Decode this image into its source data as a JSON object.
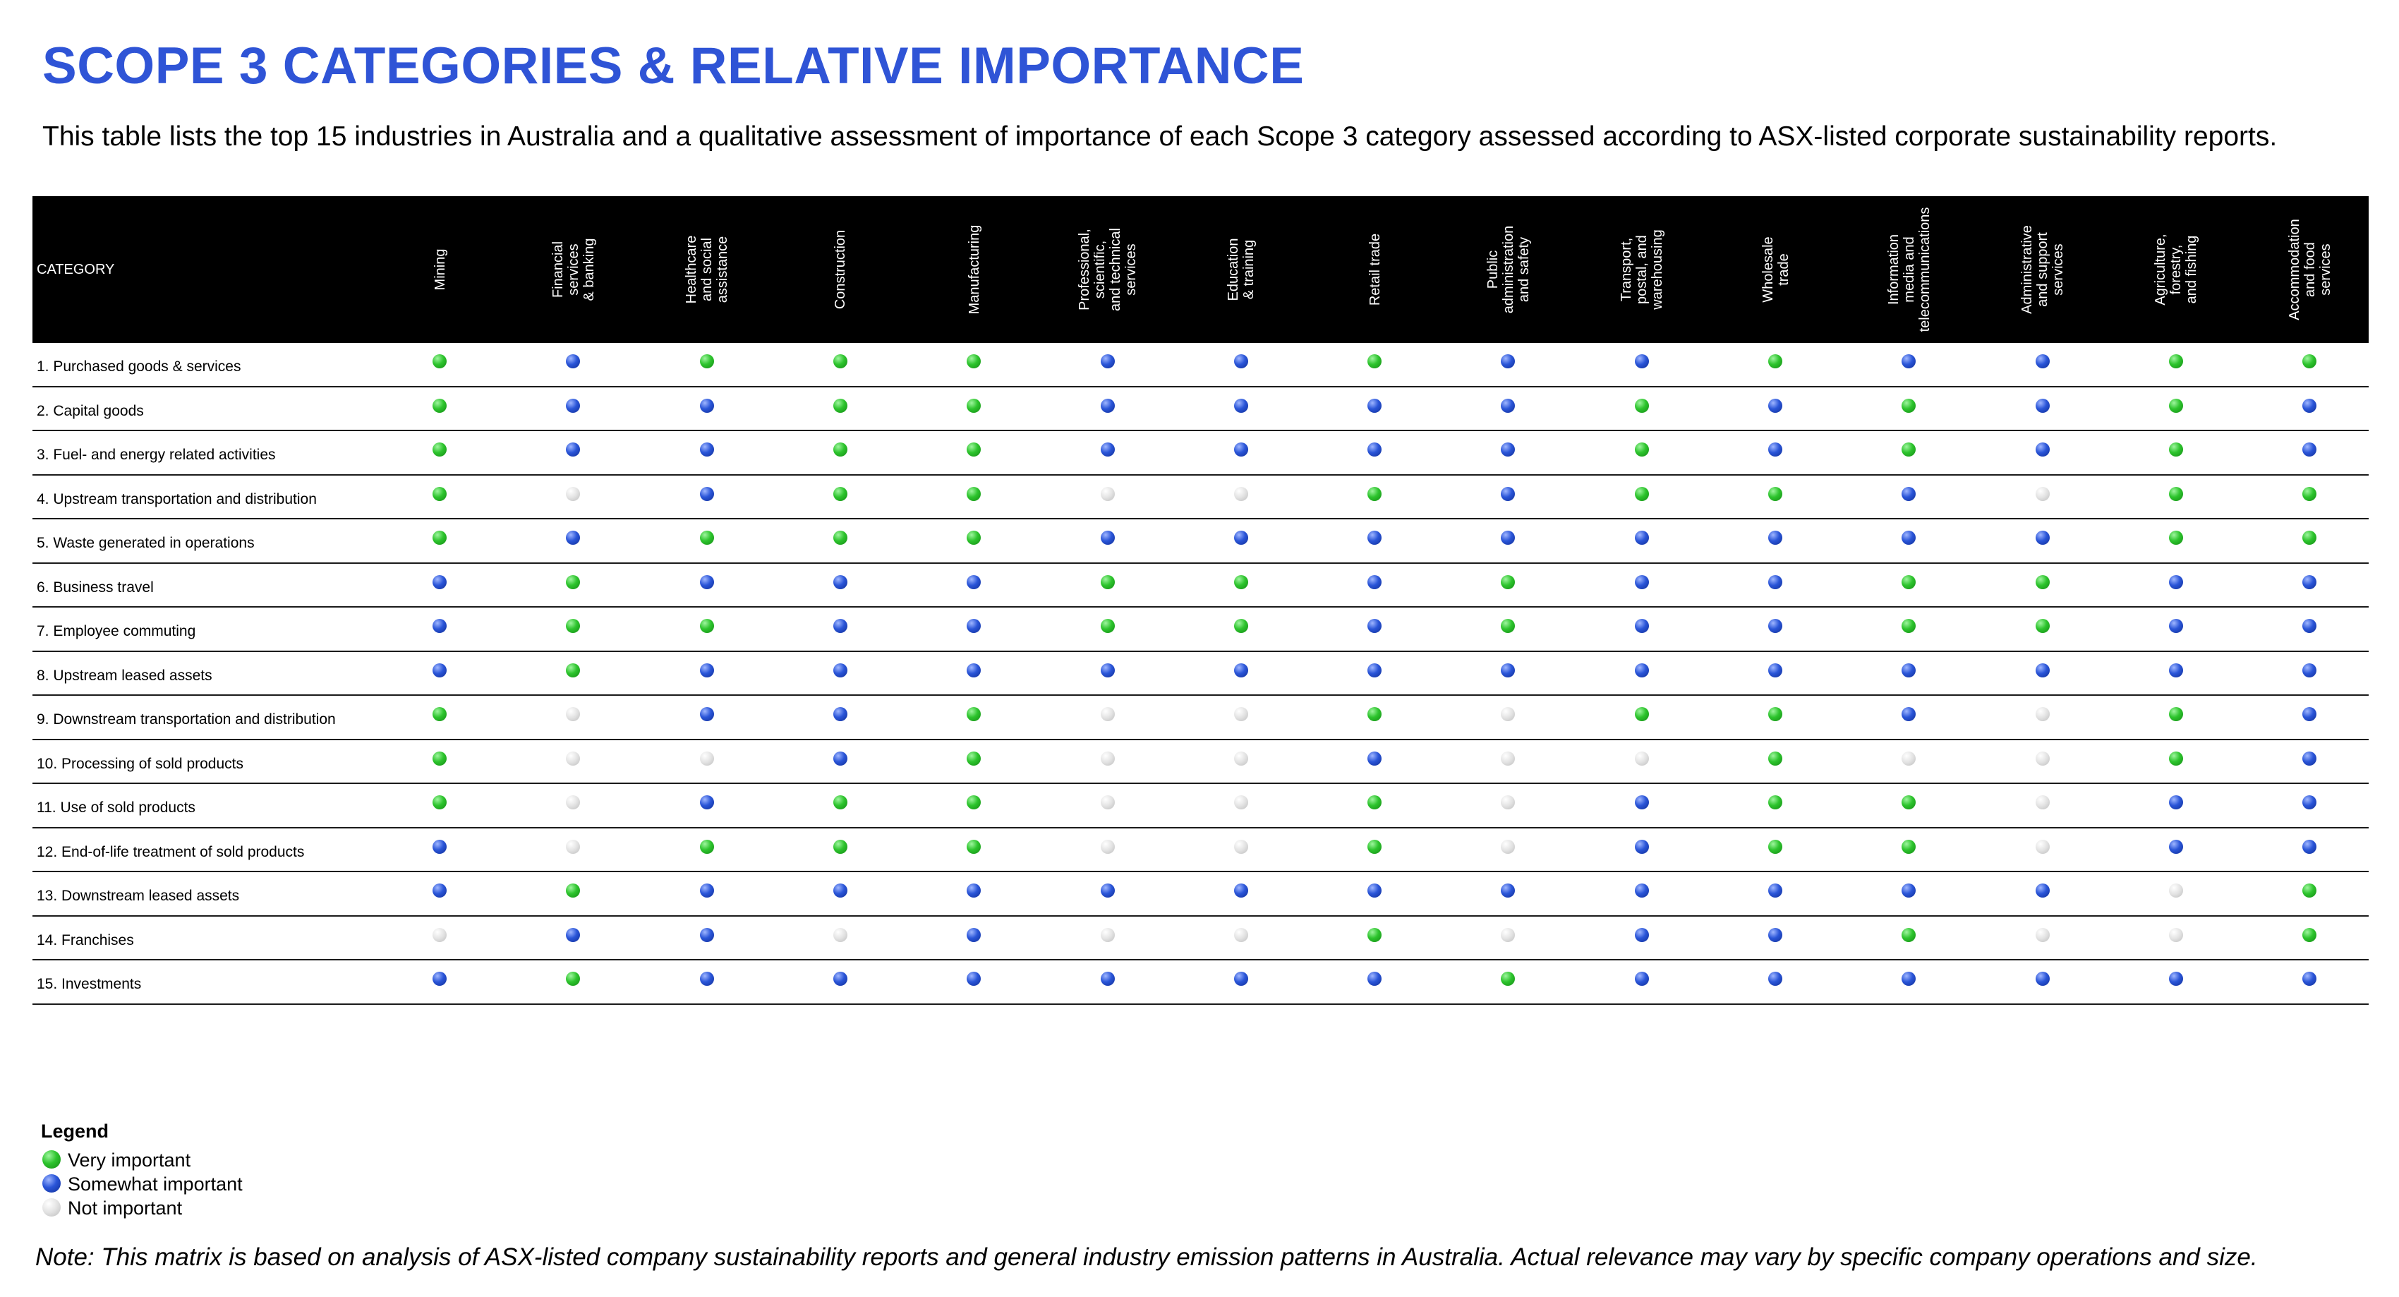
{
  "title": "SCOPE 3 CATEGORIES & RELATIVE IMPORTANCE",
  "subtitle": "This table lists the top 15 industries in Australia and a qualitative assessment of importance of each Scope 3 category assessed according to ASX-listed corporate sustainability reports.",
  "table": {
    "category_header": "CATEGORY",
    "industries": [
      "Mining",
      "Financial\nservices\n& banking",
      "Healthcare\nand social\nassistance",
      "Construction",
      "Manufacturing",
      "Professional,\nscientific,\nand technical\nservices",
      "Education\n& training",
      "Retail trade",
      "Public\nadministration\nand safety",
      "Transport,\npostal, and\nwarehousing",
      "Wholesale\ntrade",
      "Information\nmedia and\ntelecommunications",
      "Administrative\nand support\nservices",
      "Agriculture,\nforestry,\nand fishing",
      "Accommodation\nand food\nservices"
    ],
    "rows": [
      {
        "category": "1. Purchased goods & services",
        "ratings": [
          "V",
          "S",
          "V",
          "V",
          "V",
          "S",
          "S",
          "V",
          "S",
          "S",
          "V",
          "S",
          "S",
          "V",
          "V"
        ]
      },
      {
        "category": "2. Capital goods",
        "ratings": [
          "V",
          "S",
          "S",
          "V",
          "V",
          "S",
          "S",
          "S",
          "S",
          "V",
          "S",
          "V",
          "S",
          "V",
          "S"
        ]
      },
      {
        "category": "3. Fuel- and energy related activities",
        "ratings": [
          "V",
          "S",
          "S",
          "V",
          "V",
          "S",
          "S",
          "S",
          "S",
          "V",
          "S",
          "V",
          "S",
          "V",
          "S"
        ]
      },
      {
        "category": "4. Upstream transportation and distribution",
        "ratings": [
          "V",
          "N",
          "S",
          "V",
          "V",
          "N",
          "N",
          "V",
          "S",
          "V",
          "V",
          "S",
          "N",
          "V",
          "V"
        ]
      },
      {
        "category": "5. Waste generated in operations",
        "ratings": [
          "V",
          "S",
          "V",
          "V",
          "V",
          "S",
          "S",
          "S",
          "S",
          "S",
          "S",
          "S",
          "S",
          "V",
          "V"
        ]
      },
      {
        "category": "6. Business travel",
        "ratings": [
          "S",
          "V",
          "S",
          "S",
          "S",
          "V",
          "V",
          "S",
          "V",
          "S",
          "S",
          "V",
          "V",
          "S",
          "S"
        ]
      },
      {
        "category": "7. Employee commuting",
        "ratings": [
          "S",
          "V",
          "V",
          "S",
          "S",
          "V",
          "V",
          "S",
          "V",
          "S",
          "S",
          "V",
          "V",
          "S",
          "S"
        ]
      },
      {
        "category": "8. Upstream leased assets",
        "ratings": [
          "S",
          "V",
          "S",
          "S",
          "S",
          "S",
          "S",
          "S",
          "S",
          "S",
          "S",
          "S",
          "S",
          "S",
          "S"
        ]
      },
      {
        "category": "9. Downstream transportation and distribution",
        "ratings": [
          "V",
          "N",
          "S",
          "S",
          "V",
          "N",
          "N",
          "V",
          "N",
          "V",
          "V",
          "S",
          "N",
          "V",
          "S"
        ]
      },
      {
        "category": "10. Processing of sold products",
        "ratings": [
          "V",
          "N",
          "N",
          "S",
          "V",
          "N",
          "N",
          "S",
          "N",
          "N",
          "V",
          "N",
          "N",
          "V",
          "S"
        ]
      },
      {
        "category": "11. Use of sold products",
        "ratings": [
          "V",
          "N",
          "S",
          "V",
          "V",
          "N",
          "N",
          "V",
          "N",
          "S",
          "V",
          "V",
          "N",
          "S",
          "S"
        ]
      },
      {
        "category": "12. End-of-life treatment of sold products",
        "ratings": [
          "S",
          "N",
          "V",
          "V",
          "V",
          "N",
          "N",
          "V",
          "N",
          "S",
          "V",
          "V",
          "N",
          "S",
          "S"
        ]
      },
      {
        "category": "13. Downstream leased assets",
        "ratings": [
          "S",
          "V",
          "S",
          "S",
          "S",
          "S",
          "S",
          "S",
          "S",
          "S",
          "S",
          "S",
          "S",
          "N",
          "V"
        ]
      },
      {
        "category": "14. Franchises",
        "ratings": [
          "N",
          "S",
          "S",
          "N",
          "S",
          "N",
          "N",
          "V",
          "N",
          "S",
          "S",
          "V",
          "N",
          "N",
          "V"
        ]
      },
      {
        "category": "15. Investments",
        "ratings": [
          "S",
          "V",
          "S",
          "S",
          "S",
          "S",
          "S",
          "S",
          "V",
          "S",
          "S",
          "S",
          "S",
          "S",
          "S"
        ]
      }
    ]
  },
  "legend": {
    "title": "Legend",
    "items": [
      {
        "key": "V",
        "label": "Very important"
      },
      {
        "key": "S",
        "label": "Somewhat important"
      },
      {
        "key": "N",
        "label": "Not important"
      }
    ]
  },
  "note": "Note: This matrix is based on analysis of ASX-listed company sustainability reports and general industry emission patterns in Australia. Actual relevance may vary by specific company operations and size.",
  "colors": {
    "title": "#2f54d6",
    "very_important": "#2dc42d",
    "somewhat_important": "#2a55d8",
    "not_important": "#e2e2e2",
    "header_background": "#000000"
  }
}
